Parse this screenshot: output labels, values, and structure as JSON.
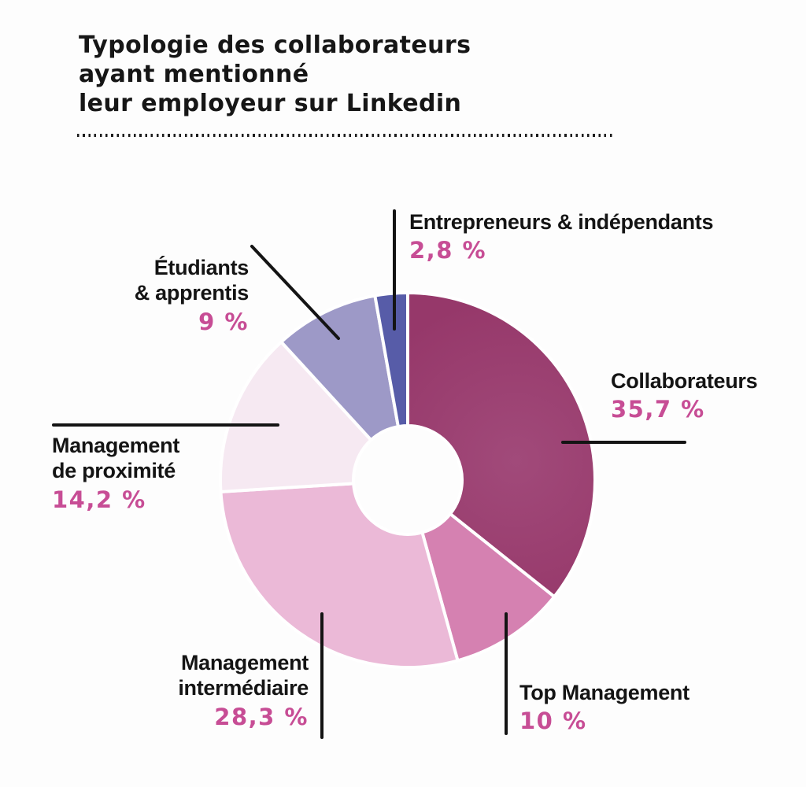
{
  "title": {
    "line1": "Typologie des collaborateurs",
    "line2": "ayant mentionné",
    "line3": "leur employeur sur Linkedin"
  },
  "colors": {
    "percent_text": "#c74d95",
    "label_text": "#141414",
    "leader_line": "#141414",
    "background": "#fdfdfd",
    "slice_gap": "#ffffff"
  },
  "chart_data": {
    "type": "pie",
    "subtype": "donut",
    "title": "Typologie des collaborateurs ayant mentionné leur employeur sur Linkedin",
    "unit": "%",
    "start_angle_deg": -90,
    "clockwise": true,
    "inner_radius_ratio": 0.29,
    "total": 100,
    "segments": [
      {
        "id": "collaborateurs",
        "name": "Collaborateurs",
        "value": 35.7,
        "display": "35,7 %",
        "color": "#97396b",
        "label1": "Collaborateurs",
        "label2": ""
      },
      {
        "id": "top-management",
        "name": "Top Management",
        "value": 10,
        "display": "10 %",
        "color": "#d581b1",
        "label1": "Top Management",
        "label2": ""
      },
      {
        "id": "management-intermediaire",
        "name": "Management intermédiaire",
        "value": 28.3,
        "display": "28,3 %",
        "color": "#ebb9d7",
        "label1": "Management",
        "label2": "intermédiaire"
      },
      {
        "id": "management-de-proximite",
        "name": "Management de proximité",
        "value": 14.2,
        "display": "14,2 %",
        "color": "#f6e9f2",
        "label1": "Management",
        "label2": "de proximité"
      },
      {
        "id": "etudiants-apprentis",
        "name": "Étudiants & apprentis",
        "value": 9,
        "display": "9 %",
        "color": "#9d99c7",
        "label1": "Étudiants",
        "label2": "& apprentis"
      },
      {
        "id": "entrepreneurs-independants",
        "name": "Entrepreneurs & indépendants",
        "value": 2.8,
        "display": "2,8 %",
        "color": "#575ca8",
        "label1": "Entrepreneurs & indépendants",
        "label2": ""
      }
    ]
  }
}
